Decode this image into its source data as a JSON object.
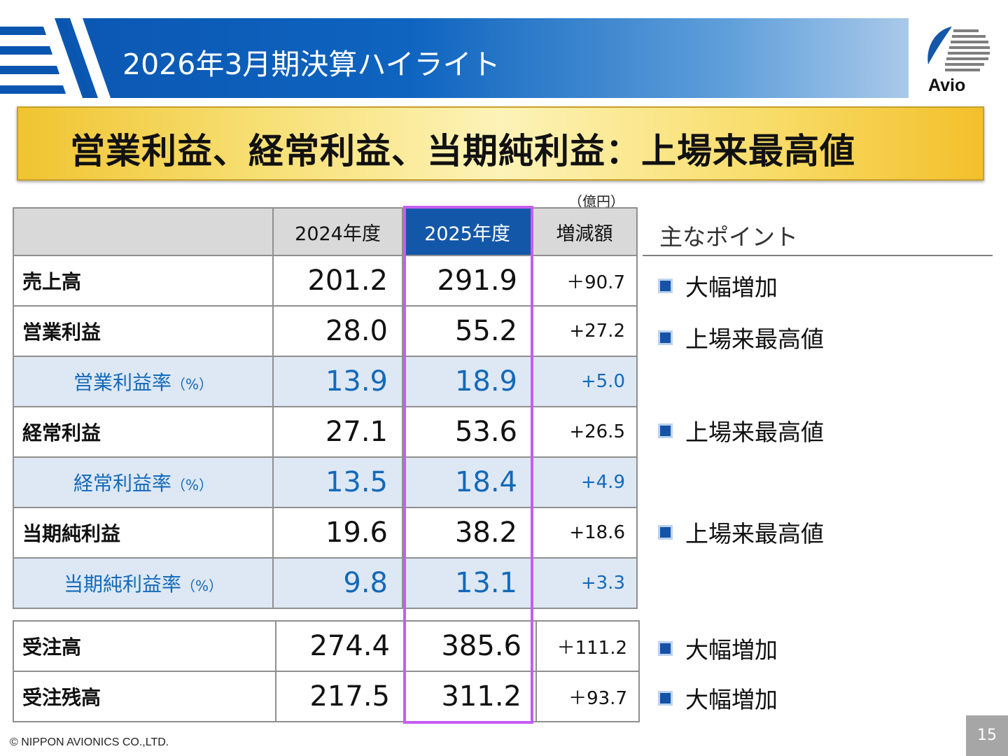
{
  "header": {
    "title": "2026年3月期決算ハイライト",
    "logo_text": "Avio",
    "bar_color": "#0e64bf"
  },
  "banner": {
    "text": "営業利益、経常利益、当期純利益：上場来最高値"
  },
  "table": {
    "unit": "（億円）",
    "headers": [
      "2024年度",
      "2025年度",
      "増減額"
    ],
    "rows": [
      {
        "label": "売上高",
        "fy2024": "201.2",
        "fy2025": "291.9",
        "diff": "＋90.7"
      },
      {
        "label": "営業利益",
        "fy2024": "28.0",
        "fy2025": "55.2",
        "diff": "+27.2"
      },
      {
        "label": "営業利益率",
        "suffix": "（%）",
        "fy2024": "13.9",
        "fy2025": "18.9",
        "diff": "+5.0"
      },
      {
        "label": "経常利益",
        "fy2024": "27.1",
        "fy2025": "53.6",
        "diff": "+26.5"
      },
      {
        "label": "経常利益率",
        "suffix": "（%）",
        "fy2024": "13.5",
        "fy2025": "18.4",
        "diff": "+4.9"
      },
      {
        "label": "当期純利益",
        "fy2024": "19.6",
        "fy2025": "38.2",
        "diff": "+18.6"
      },
      {
        "label": "当期純利益率",
        "suffix": "（%）",
        "fy2024": "9.8",
        "fy2025": "13.1",
        "diff": "+3.3"
      }
    ],
    "orders": [
      {
        "label": "受注高",
        "fy2024": "274.4",
        "fy2025": "385.6",
        "diff": "＋111.2"
      },
      {
        "label": "受注残高",
        "fy2024": "217.5",
        "fy2025": "311.2",
        "diff": "＋93.7"
      }
    ],
    "highlight_color": "#c45ef0",
    "rate_color": "#1469b9"
  },
  "points": {
    "title": "主なポイント",
    "items": [
      "大幅増加",
      "上場来最高値",
      "上場来最高値",
      "上場来最高値",
      "大幅増加",
      "大幅増加"
    ]
  },
  "footer": {
    "copyright": "© NIPPON AVIONICS CO.,LTD.",
    "page": "15"
  }
}
